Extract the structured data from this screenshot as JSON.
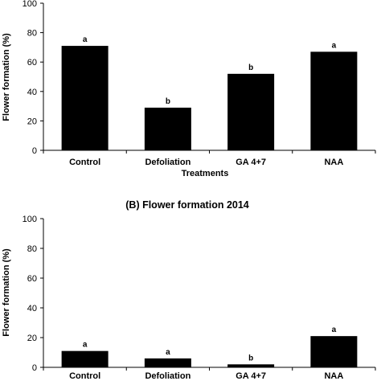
{
  "colors": {
    "bar": "#000000",
    "axis": "#000000"
  },
  "chart_data": [
    {
      "type": "bar",
      "title": "",
      "xlabel": "Treatments",
      "ylabel": "Flower formation (%)",
      "ylim": [
        0,
        100
      ],
      "yticks": [
        "0",
        "20",
        "40",
        "60",
        "80",
        "100"
      ],
      "categories": [
        "Control",
        "Defoliation",
        "GA 4+7",
        "NAA"
      ],
      "values": [
        71,
        29,
        52,
        67
      ],
      "significance": [
        "a",
        "b",
        "b",
        "a"
      ],
      "grid": false
    },
    {
      "type": "bar",
      "title": "(B) Flower formation 2014",
      "xlabel": "",
      "ylabel": "Flower formation (%)",
      "ylim": [
        0,
        100
      ],
      "yticks": [
        "0",
        "20",
        "40",
        "60",
        "80",
        "100"
      ],
      "categories": [
        "Control",
        "Defoliation",
        "GA 4+7",
        "NAA"
      ],
      "values": [
        11,
        6,
        2,
        21
      ],
      "significance": [
        "a",
        "a",
        "b",
        "a"
      ],
      "grid": false
    }
  ]
}
